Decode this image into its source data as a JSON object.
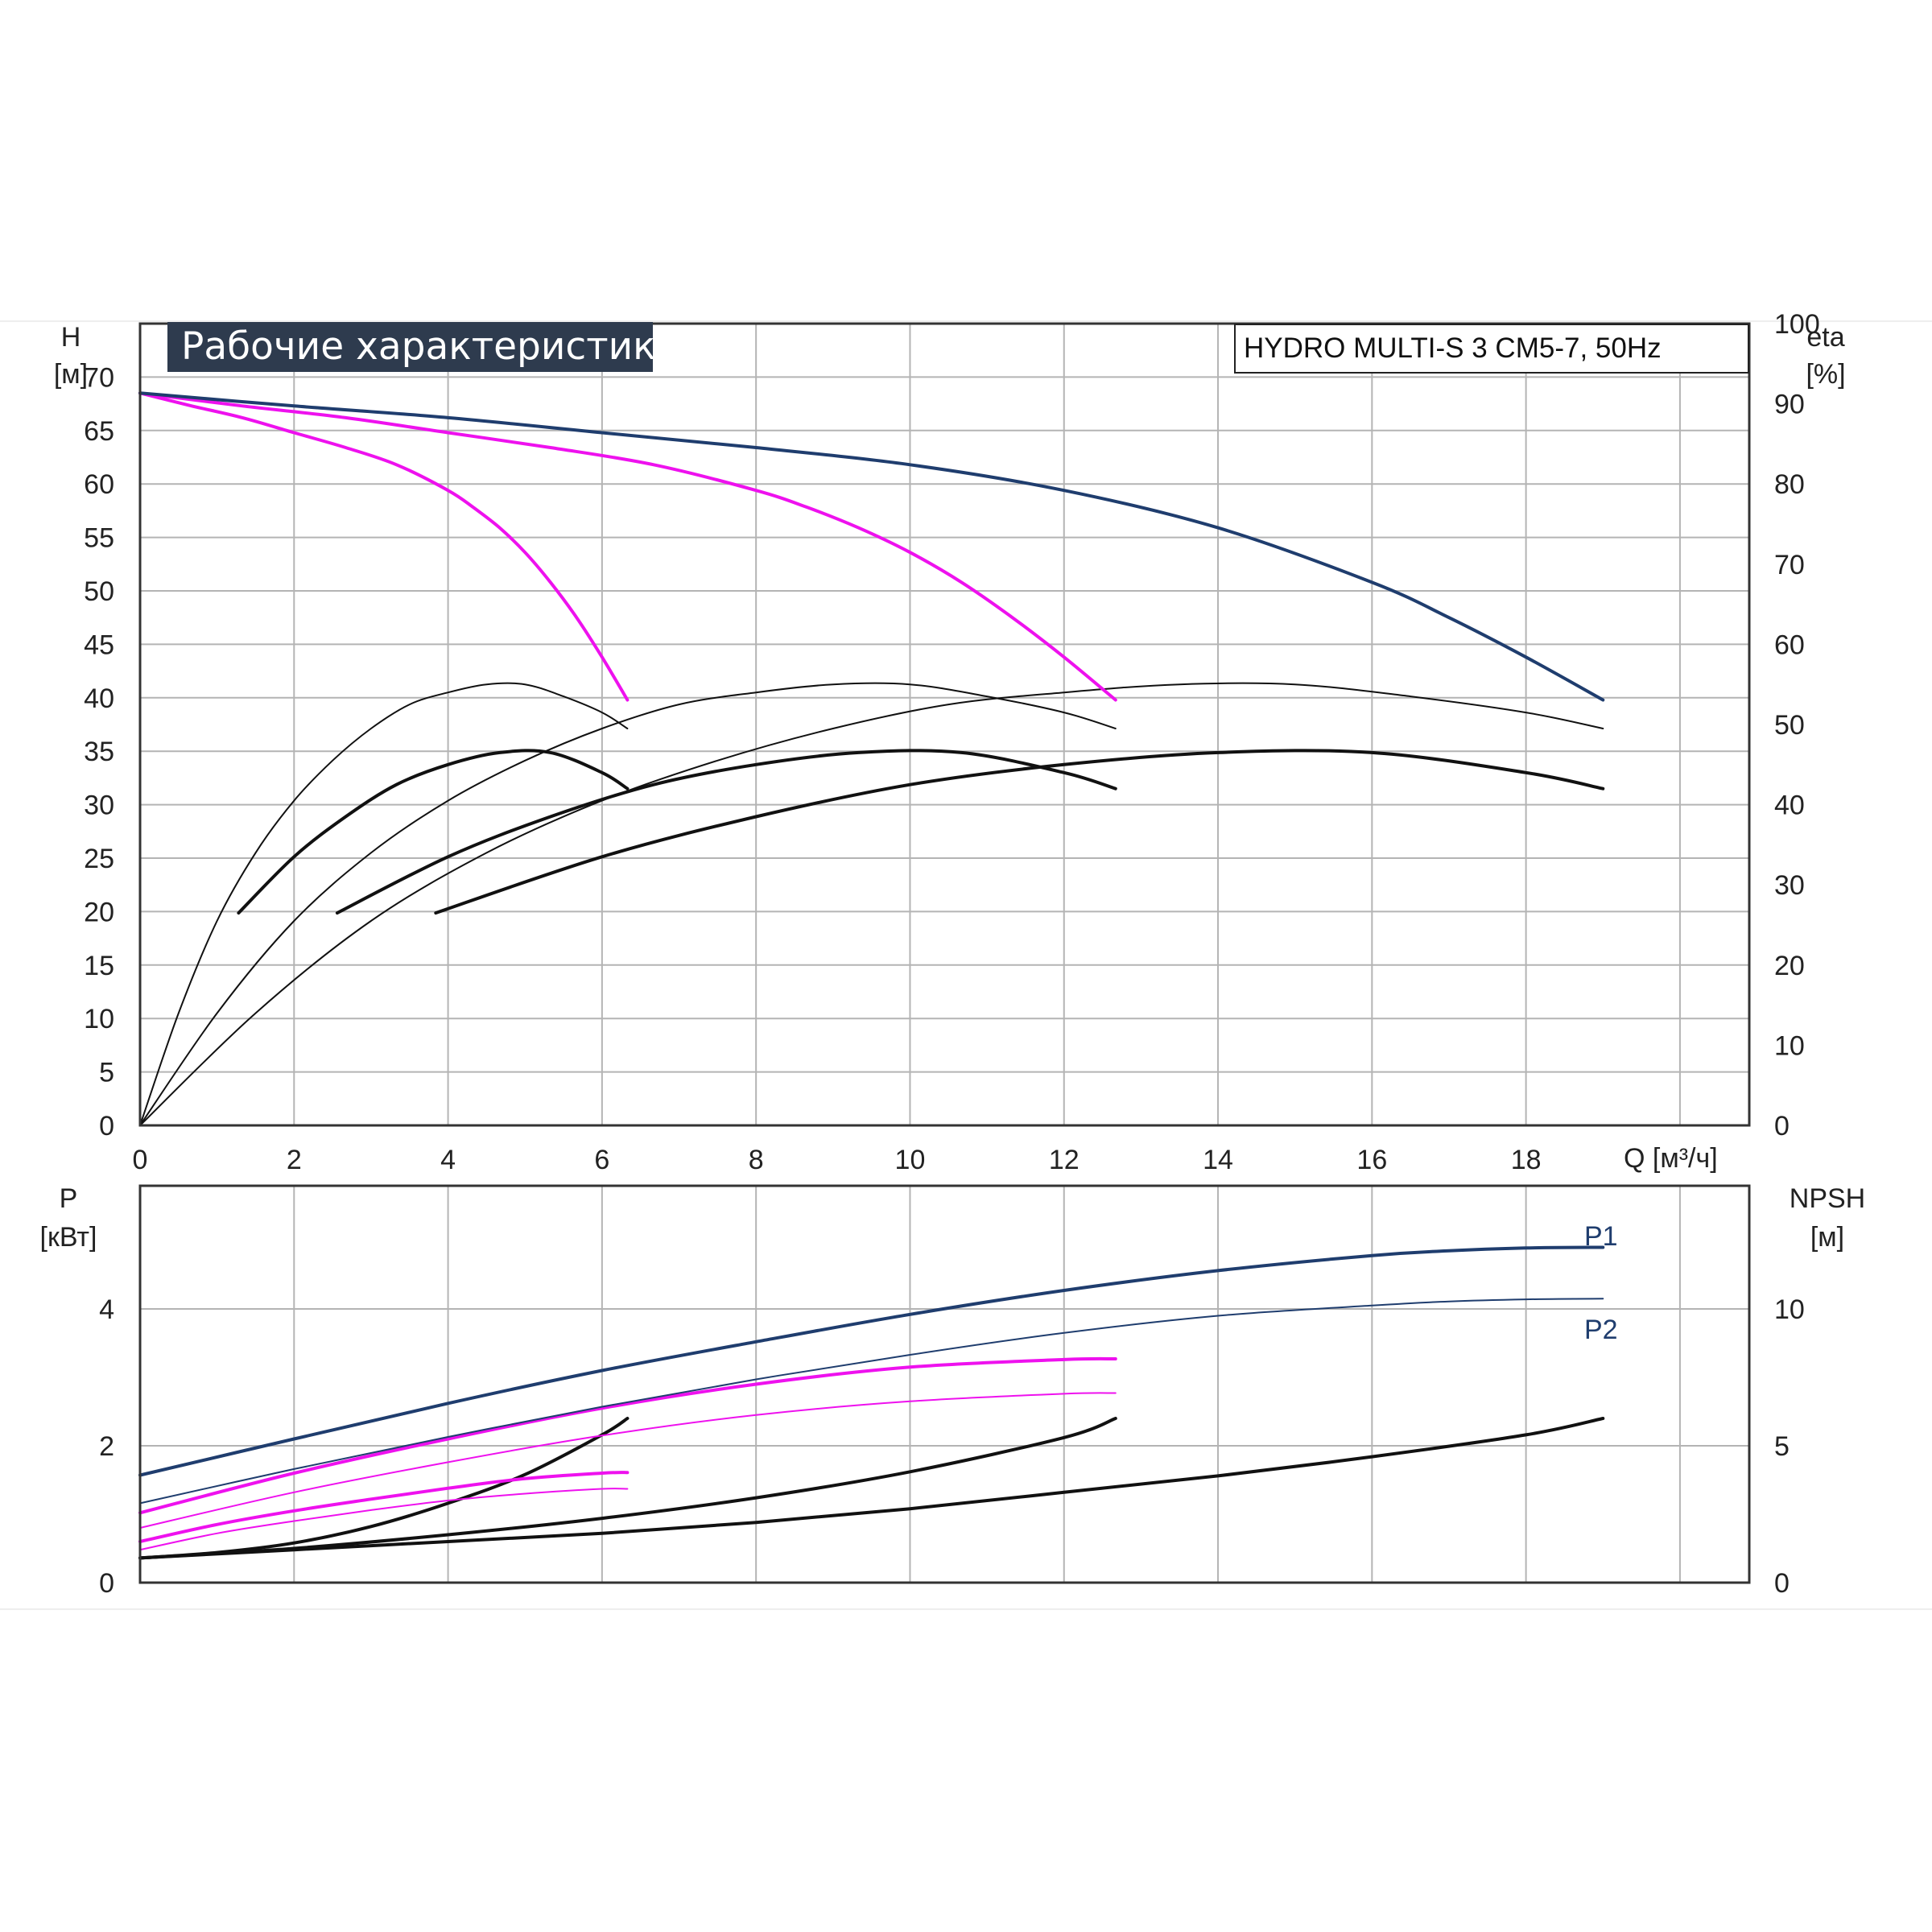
{
  "title": "Рабочие характеристики",
  "model": "HYDRO MULTI-S 3 CM5-7, 50Hz",
  "colors": {
    "dark_blue": "#1f3d6e",
    "magenta": "#ee11ee",
    "black": "#111111",
    "grid": "#b4b4b4",
    "title_bg": "#2e3b4e"
  },
  "axes": {
    "h_symbol": "H",
    "h_unit": "[м]",
    "eta_symbol": "eta",
    "eta_unit": "[%]",
    "q_label": "Q [м³/ч]",
    "p_symbol": "P",
    "p_unit": "[кВт]",
    "npsh_symbol": "NPSH",
    "npsh_unit": "[м]"
  },
  "chart_data": [
    {
      "type": "line",
      "title": "Рабочие характеристики",
      "subtitle": "HYDRO MULTI-S 3 CM5-7, 50Hz",
      "xlabel": "Q [м³/ч]",
      "ylabel": "H [м]",
      "y2label": "eta [%]",
      "xlim": [
        0,
        20.9
      ],
      "ylim": [
        0,
        75
      ],
      "y2lim": [
        0,
        100
      ],
      "x_ticks": [
        0,
        2,
        4,
        6,
        8,
        10,
        12,
        14,
        16,
        18
      ],
      "y_ticks": [
        0,
        5,
        10,
        15,
        20,
        25,
        30,
        35,
        40,
        45,
        50,
        55,
        60,
        65,
        70
      ],
      "y2_ticks": [
        0,
        10,
        20,
        30,
        40,
        50,
        60,
        70,
        80,
        90,
        100
      ],
      "grid": true,
      "series": [
        {
          "color": "#1f3d6e",
          "axis": "H",
          "width": 4,
          "x": [
            0,
            2,
            4,
            6,
            8,
            10,
            12,
            14,
            16,
            17,
            18,
            19
          ],
          "y": [
            68.5,
            67.3,
            66.2,
            64.8,
            63.4,
            61.8,
            59.4,
            55.9,
            50.8,
            47.5,
            43.8,
            39.8
          ]
        },
        {
          "color": "#ee11ee",
          "axis": "H",
          "width": 4,
          "x": [
            0,
            1.33,
            2.67,
            4,
            5.33,
            6.67,
            8,
            8.67,
            9.33,
            10,
            10.67,
            11.33,
            12,
            12.67
          ],
          "y": [
            68.5,
            67.3,
            66.2,
            64.8,
            63.4,
            61.8,
            59.4,
            57.8,
            55.9,
            53.6,
            50.8,
            47.5,
            43.8,
            39.8
          ]
        },
        {
          "color": "#ee11ee",
          "axis": "H",
          "width": 4,
          "x": [
            0,
            0.67,
            1.33,
            2,
            2.67,
            3.33,
            4,
            4.33,
            4.67,
            5,
            5.33,
            5.67,
            6,
            6.33
          ],
          "y": [
            68.5,
            67.3,
            66.2,
            64.8,
            63.4,
            61.8,
            59.4,
            57.8,
            55.9,
            53.6,
            50.8,
            47.5,
            43.8,
            39.8
          ]
        },
        {
          "color": "#111111",
          "axis": "eta",
          "width": 2,
          "x": [
            0,
            0.5,
            1,
            1.5,
            2,
            2.5,
            3,
            3.5,
            4,
            4.5,
            5,
            5.5,
            6,
            6.33
          ],
          "y": [
            0,
            14,
            25.5,
            34,
            40.5,
            45.5,
            49.5,
            52.5,
            54,
            55,
            55,
            53.5,
            51.5,
            49.5
          ]
        },
        {
          "color": "#111111",
          "axis": "eta",
          "width": 4,
          "x": [
            1.28,
            2,
            2.67,
            3.33,
            4,
            4.67,
            5.33,
            6,
            6.33
          ],
          "y": [
            26.5,
            33.5,
            38.5,
            42.5,
            45,
            46.5,
            46.5,
            44,
            42
          ]
        },
        {
          "color": "#111111",
          "axis": "eta",
          "width": 2,
          "x": [
            0,
            1,
            2,
            3,
            4,
            5,
            6,
            7,
            8,
            9,
            10,
            11,
            12,
            12.67
          ],
          "y": [
            0,
            14,
            25.5,
            34,
            40.5,
            45.5,
            49.5,
            52.5,
            54,
            55,
            55,
            53.5,
            51.5,
            49.5
          ]
        },
        {
          "color": "#111111",
          "axis": "eta",
          "width": 4,
          "x": [
            2.56,
            4,
            5.33,
            6.67,
            8,
            9.33,
            10.67,
            12,
            12.67
          ],
          "y": [
            26.5,
            33.5,
            38.5,
            42.5,
            45,
            46.5,
            46.5,
            44,
            42
          ]
        },
        {
          "color": "#111111",
          "axis": "eta",
          "width": 2,
          "x": [
            0,
            1.5,
            3,
            4.5,
            6,
            7.5,
            9,
            10.5,
            12,
            13.5,
            15,
            16.5,
            18,
            19
          ],
          "y": [
            0,
            14,
            25.5,
            34,
            40.5,
            45.5,
            49.5,
            52.5,
            54,
            55,
            55,
            53.5,
            51.5,
            49.5
          ]
        },
        {
          "color": "#111111",
          "axis": "eta",
          "width": 4,
          "x": [
            3.84,
            6,
            8,
            10,
            12,
            14,
            16,
            18,
            19
          ],
          "y": [
            26.5,
            33.5,
            38.5,
            42.5,
            45,
            46.5,
            46.5,
            44,
            42
          ]
        }
      ]
    },
    {
      "type": "line",
      "ylabel": "P [кВт]",
      "y2label": "NPSH [м]",
      "xlim": [
        0,
        20.9
      ],
      "ylim": [
        0,
        5.8
      ],
      "y2lim": [
        0,
        14.5
      ],
      "y_ticks": [
        0,
        2,
        4
      ],
      "y2_ticks": [
        0,
        5,
        10
      ],
      "grid": true,
      "series": [
        {
          "name": "P1",
          "color": "#1f3d6e",
          "axis": "P",
          "width": 4,
          "x": [
            0,
            2,
            4,
            6,
            8,
            10,
            12,
            14,
            16,
            17,
            18,
            19
          ],
          "y": [
            1.57,
            2.1,
            2.62,
            3.1,
            3.52,
            3.92,
            4.27,
            4.56,
            4.78,
            4.85,
            4.89,
            4.9
          ]
        },
        {
          "name": "P2",
          "color": "#1f3d6e",
          "axis": "P",
          "width": 2,
          "x": [
            0,
            2,
            4,
            6,
            8,
            10,
            12,
            14,
            16,
            17,
            18,
            19
          ],
          "y": [
            1.16,
            1.66,
            2.13,
            2.57,
            2.97,
            3.33,
            3.65,
            3.9,
            4.05,
            4.11,
            4.14,
            4.15
          ]
        },
        {
          "color": "#ee11ee",
          "axis": "P",
          "width": 4,
          "x": [
            0,
            2,
            4,
            6,
            8,
            10,
            12,
            12.67
          ],
          "y": [
            1.02,
            1.6,
            2.1,
            2.55,
            2.9,
            3.15,
            3.26,
            3.27
          ]
        },
        {
          "color": "#ee11ee",
          "axis": "P",
          "width": 2,
          "x": [
            0,
            2,
            4,
            6,
            8,
            10,
            12,
            12.67
          ],
          "y": [
            0.8,
            1.32,
            1.76,
            2.15,
            2.45,
            2.65,
            2.76,
            2.77
          ]
        },
        {
          "color": "#ee11ee",
          "axis": "P",
          "width": 4,
          "x": [
            0,
            1,
            2,
            3,
            4,
            5,
            6,
            6.33
          ],
          "y": [
            0.6,
            0.85,
            1.05,
            1.22,
            1.38,
            1.52,
            1.6,
            1.61
          ]
        },
        {
          "color": "#ee11ee",
          "axis": "P",
          "width": 2,
          "x": [
            0,
            1,
            2,
            3,
            4,
            5,
            6,
            6.33
          ],
          "y": [
            0.48,
            0.72,
            0.9,
            1.06,
            1.2,
            1.3,
            1.37,
            1.37
          ]
        },
        {
          "color": "#111111",
          "axis": "NPSH",
          "width": 4,
          "x": [
            0,
            2,
            4,
            6,
            8,
            10,
            12,
            14,
            16,
            18,
            19
          ],
          "y": [
            0.9,
            1.2,
            1.5,
            1.8,
            2.2,
            2.7,
            3.3,
            3.9,
            4.6,
            5.4,
            6
          ]
        },
        {
          "color": "#111111",
          "axis": "NPSH",
          "width": 4,
          "x": [
            0,
            2,
            4,
            6,
            8,
            10,
            12,
            12.67
          ],
          "y": [
            0.9,
            1.25,
            1.75,
            2.35,
            3.1,
            4.05,
            5.3,
            6
          ]
        },
        {
          "color": "#111111",
          "axis": "NPSH",
          "width": 4,
          "x": [
            0,
            1,
            2,
            3,
            4,
            5,
            6,
            6.33
          ],
          "y": [
            0.9,
            1.1,
            1.45,
            2.05,
            2.9,
            3.95,
            5.4,
            6
          ]
        }
      ]
    }
  ]
}
